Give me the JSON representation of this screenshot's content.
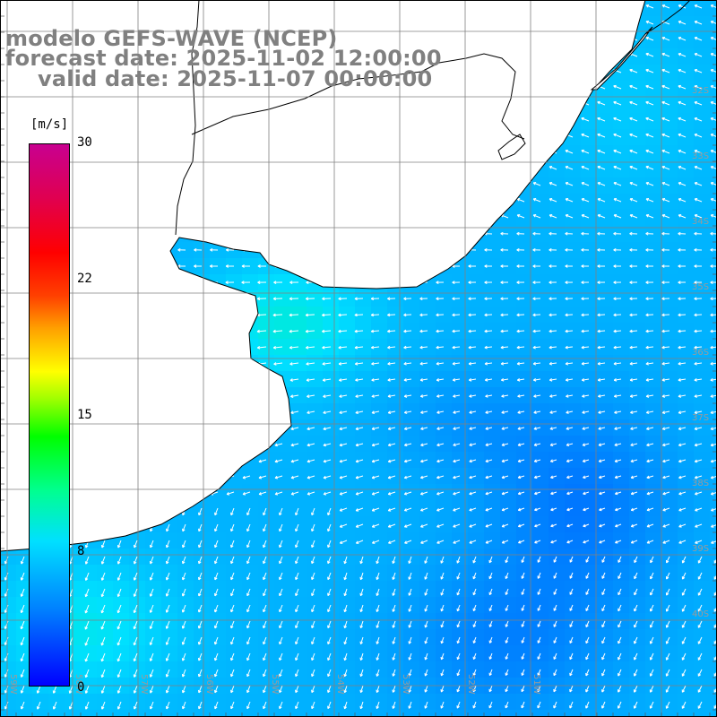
{
  "title_lines": [
    "modelo GEFS-WAVE (NCEP)",
    "forecast date: 2025-11-02 12:00:00",
    "valid date: 2025-11-07 00:00:00"
  ],
  "colorbar": {
    "unit": "[m/s]",
    "min": 0,
    "max": 30,
    "ticks": [
      "30",
      "22",
      "15",
      "8",
      "0"
    ],
    "tick_values": [
      30,
      22,
      15,
      8,
      0
    ],
    "colors": [
      "#0000ff",
      "#0080ff",
      "#00e0ff",
      "#00ff90",
      "#00ff00",
      "#a0ff00",
      "#ffff00",
      "#ffa000",
      "#ff4000",
      "#ff0000",
      "#e00050",
      "#c80090"
    ]
  },
  "grid": {
    "lat_labels": [
      "32S",
      "33S",
      "34S",
      "35S",
      "36S",
      "37S",
      "38S",
      "39S",
      "40S"
    ],
    "lon_labels": [
      "59W",
      "58W",
      "57W",
      "56W",
      "55W",
      "54W",
      "53W",
      "52W",
      "51W"
    ]
  },
  "field": {
    "variable": "wind speed",
    "units": "m/s",
    "colors": {
      "land": "#ffffff",
      "coast": "#000000",
      "grid": "#808080",
      "vector": "#ffffff"
    }
  }
}
